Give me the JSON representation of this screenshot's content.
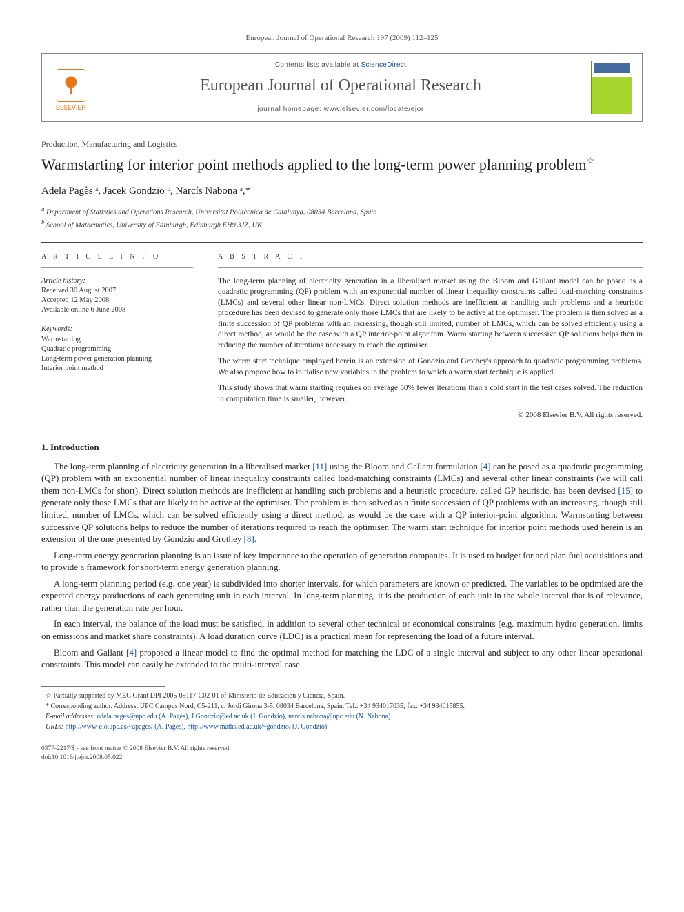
{
  "journal_ref": "European Journal of Operational Research 197 (2009) 112–125",
  "header": {
    "publisher": "ELSEVIER",
    "contents_prefix": "Contents lists available at ",
    "contents_link": "ScienceDirect",
    "journal_title": "European Journal of Operational Research",
    "homepage_label": "journal homepage: www.elsevier.com/locate/ejor"
  },
  "kicker": "Production, Manufacturing and Logistics",
  "title": "Warmstarting for interior point methods applied to the long-term power planning problem",
  "title_footnote_mark": "☆",
  "authors_line": "Adela Pagès ᵃ, Jacek Gondzio ᵇ, Narcís Nabona ᵃ,*",
  "affiliations": {
    "a": "Department of Statistics and Operations Research, Universitat Politècnica de Catalunya, 08034 Barcelona, Spain",
    "b": "School of Mathematics, University of Edinburgh, Edinburgh EH9 3JZ, UK"
  },
  "article_info": {
    "heading": "A R T I C L E   I N F O",
    "history_label": "Article history:",
    "received": "Received 30 August 2007",
    "accepted": "Accepted 12 May 2008",
    "online": "Available online 6 June 2008",
    "keywords_label": "Keywords:",
    "keywords": [
      "Warmstarting",
      "Quadratic programming",
      "Long-term power generation planning",
      "Interior point method"
    ]
  },
  "abstract": {
    "heading": "A B S T R A C T",
    "p1": "The long-term planning of electricity generation in a liberalised market using the Bloom and Gallant model can be posed as a quadratic programming (QP) problem with an exponential number of linear inequality constraints called load-matching constraints (LMCs) and several other linear non-LMCs. Direct solution methods are inefficient at handling such problems and a heuristic procedure has been devised to generate only those LMCs that are likely to be active at the optimiser. The problem is then solved as a finite succession of QP problems with an increasing, though still limited, number of LMCs, which can be solved efficiently using a direct method, as would be the case with a QP interior-point algorithm. Warm starting between successive QP solutions helps then in reducing the number of iterations necessary to reach the optimiser.",
    "p2": "The warm start technique employed herein is an extension of Gondzio and Grothey's approach to quadratic programming problems. We also propose how to initialise new variables in the problem to which a warm start technique is applied.",
    "p3": "This study shows that warm starting requires on average 50% fewer iterations than a cold start in the test cases solved. The reduction in computation time is smaller, however.",
    "copyright": "© 2008 Elsevier B.V. All rights reserved."
  },
  "section1_heading": "1. Introduction",
  "intro": {
    "p1a": "The long-term planning of electricity generation in a liberalised market ",
    "p1_ref1": "[11]",
    "p1b": " using the Bloom and Gallant formulation ",
    "p1_ref2": "[4]",
    "p1c": " can be posed as a quadratic programming (QP) problem with an exponential number of linear inequality constraints called load-matching constraints (LMCs) and several other linear constraints (we will call them non-LMCs for short). Direct solution methods are inefficient at handling such problems and a heuristic procedure, called GP heuristic, has been devised ",
    "p1_ref3": "[15]",
    "p1d": " to generate only those LMCs that are likely to be active at the optimiser. The problem is then solved as a finite succession of QP problems with an increasing, though still limited, number of LMCs, which can be solved efficiently using a direct method, as would be the case with a QP interior-point algorithm. Warmstarting between successive QP solutions helps to reduce the number of iterations required to reach the optimiser. The warm start technique for interior point methods used herein is an extension of the one presented by Gondzio and Grothey ",
    "p1_ref4": "[8]",
    "p1e": ".",
    "p2": "Long-term energy generation planning is an issue of key importance to the operation of generation companies. It is used to budget for and plan fuel acquisitions and to provide a framework for short-term energy generation planning.",
    "p3": "A long-term planning period (e.g. one year) is subdivided into shorter intervals, for which parameters are known or predicted. The variables to be optimised are the expected energy productions of each generating unit in each interval. In long-term planning, it is the production of each unit in the whole interval that is of relevance, rather than the generation rate per hour.",
    "p4": "In each interval, the balance of the load must be satisfied, in addition to several other technical or economical constraints (e.g. maximum hydro generation, limits on emissions and market share constraints). A load duration curve (LDC) is a practical mean for representing the load of a future interval.",
    "p5a": "Bloom and Gallant ",
    "p5_ref": "[4]",
    "p5b": " proposed a linear model to find the optimal method for matching the LDC of a single interval and subject to any other linear operational constraints. This model can easily be extended to the multi-interval case."
  },
  "footnotes": {
    "funding_mark": "☆",
    "funding": " Partially supported by MEC Grant DPI 2005-09117-C02-01 of Ministerio de Educación y Ciencia, Spain.",
    "corr_mark": "*",
    "corr": " Corresponding author. Address: UPC Campus Nord, C5-211, c. Jordi Girona 3-5, 08034 Barcelona, Spain. Tel.: +34 934017035; fax: +34 934015855.",
    "emails_label": "E-mail addresses: ",
    "emails_val": "adela.pages@upc.edu (A. Pagès), J.Gondzio@ed.ac.uk (J. Gondzio), narcis.nabona@upc.edu (N. Nabona).",
    "urls_label": "URLs: ",
    "urls_val": "http://www-eio.upc.es/~apages/ (A. Pagès), http://www.maths.ed.ac.uk/~gondzio/ (J. Gondzio)."
  },
  "footer": {
    "line1": "0377-2217/$ - see front matter © 2008 Elsevier B.V. All rights reserved.",
    "line2": "doi:10.1016/j.ejor.2008.05.022"
  },
  "colors": {
    "link": "#1651a4",
    "elsevier_orange": "#e67817",
    "text": "#2a2a2a",
    "rule": "#444444"
  }
}
